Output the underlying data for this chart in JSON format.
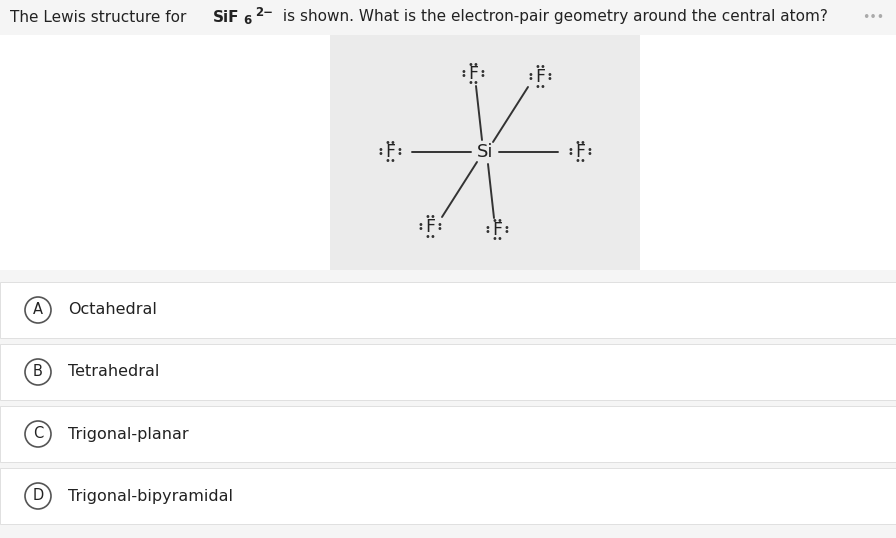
{
  "bg_color": "#f5f5f5",
  "lewis_bg": "#ebebeb",
  "white_bg": "#ffffff",
  "text_color": "#222222",
  "dot_color": "#333333",
  "options": [
    {
      "label": "A",
      "text": "Octahedral"
    },
    {
      "label": "B",
      "text": "Tetrahedral"
    },
    {
      "label": "C",
      "text": "Trigonal-planar"
    },
    {
      "label": "D",
      "text": "Trigonal-bipyramidal"
    }
  ],
  "title_pre": "The Lewis structure for ",
  "title_bold": "SiF",
  "title_sub": "6",
  "title_sup": "2−",
  "title_post": " is shown. What is the electron-pair geometry around the central atom?",
  "three_dots": "•••",
  "option_bg": "#ffffff",
  "option_border": "#e0e0e0",
  "circle_color": "#555555"
}
